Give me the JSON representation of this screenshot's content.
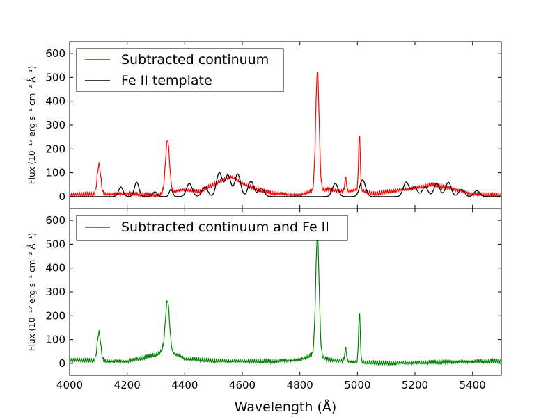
{
  "chart_data": [
    {
      "type": "line",
      "panel": "top",
      "ylabel": "Flux (10⁻¹⁷ erg s⁻¹ cm⁻² Å⁻¹)",
      "xlim": [
        4000,
        5500
      ],
      "ylim": [
        -50,
        650
      ],
      "yticks": [
        "0",
        "100",
        "200",
        "300",
        "400",
        "500",
        "600"
      ],
      "legend_position": "top-left",
      "series": [
        {
          "name": "Subtracted continuum",
          "color": "#ff0000",
          "baseline_points": [
            [
              4000,
              8
            ],
            [
              4200,
              12
            ],
            [
              4300,
              5
            ],
            [
              4400,
              30
            ],
            [
              4450,
              20
            ],
            [
              4500,
              50
            ],
            [
              4560,
              85
            ],
            [
              4600,
              55
            ],
            [
              4650,
              30
            ],
            [
              4700,
              15
            ],
            [
              4800,
              5
            ],
            [
              4830,
              20
            ],
            [
              4900,
              30
            ],
            [
              4960,
              20
            ],
            [
              5000,
              30
            ],
            [
              5060,
              10
            ],
            [
              5100,
              20
            ],
            [
              5200,
              35
            ],
            [
              5260,
              50
            ],
            [
              5340,
              30
            ],
            [
              5400,
              10
            ],
            [
              5500,
              5
            ]
          ],
          "peaks": [
            [
              4102,
              125,
              6
            ],
            [
              4340,
              222,
              7
            ],
            [
              4861,
              500,
              6
            ],
            [
              4959,
              60,
              3
            ],
            [
              5007,
              230,
              3
            ]
          ]
        },
        {
          "name": "Fe II template",
          "color": "#000000",
          "components": [
            [
              4178,
              40,
              8
            ],
            [
              4233,
              60,
              8
            ],
            [
              4296,
              20,
              8
            ],
            [
              4352,
              30,
              6
            ],
            [
              4416,
              55,
              10
            ],
            [
              4470,
              40,
              10
            ],
            [
              4520,
              100,
              10
            ],
            [
              4550,
              90,
              10
            ],
            [
              4584,
              95,
              10
            ],
            [
              4630,
              65,
              10
            ],
            [
              4666,
              35,
              10
            ],
            [
              4923,
              55,
              10
            ],
            [
              5018,
              70,
              10
            ],
            [
              5169,
              60,
              10
            ],
            [
              5198,
              40,
              10
            ],
            [
              5235,
              40,
              10
            ],
            [
              5276,
              55,
              10
            ],
            [
              5316,
              60,
              10
            ],
            [
              5362,
              30,
              10
            ],
            [
              5415,
              25,
              10
            ]
          ]
        }
      ]
    },
    {
      "type": "line",
      "panel": "bottom",
      "xlabel": "Wavelength (Å)",
      "ylabel": "Flux (10⁻¹⁷ erg s⁻¹ cm⁻² Å⁻¹)",
      "xlim": [
        4000,
        5500
      ],
      "ylim": [
        -50,
        650
      ],
      "xticks": [
        "4000",
        "4200",
        "4400",
        "4600",
        "4800",
        "5000",
        "5200",
        "5400"
      ],
      "yticks": [
        "0",
        "100",
        "200",
        "300",
        "400",
        "500",
        "600"
      ],
      "legend_position": "top-left",
      "series": [
        {
          "name": "Subtracted continuum and Fe II",
          "color": "#008000",
          "baseline_points": [
            [
              4000,
              15
            ],
            [
              4100,
              10
            ],
            [
              4200,
              8
            ],
            [
              4300,
              35
            ],
            [
              4330,
              60
            ],
            [
              4400,
              20
            ],
            [
              4500,
              10
            ],
            [
              4700,
              8
            ],
            [
              4800,
              15
            ],
            [
              4850,
              40
            ],
            [
              4900,
              15
            ],
            [
              5000,
              5
            ],
            [
              5100,
              0
            ],
            [
              5300,
              5
            ],
            [
              5500,
              10
            ]
          ],
          "peaks": [
            [
              4102,
              120,
              6
            ],
            [
              4340,
              210,
              7
            ],
            [
              4861,
              500,
              6
            ],
            [
              4959,
              55,
              3
            ],
            [
              5007,
              205,
              3
            ]
          ]
        }
      ]
    }
  ]
}
